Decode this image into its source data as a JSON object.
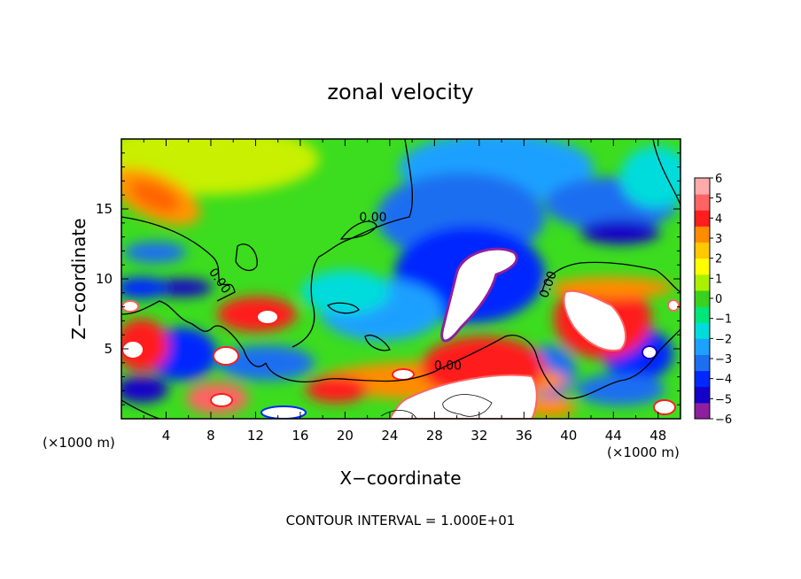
{
  "chart_data": {
    "type": "heatmap",
    "title": "zonal velocity",
    "xlabel": "X−coordinate",
    "ylabel": "Z−coordinate",
    "x_unit_left": "(×1000 m)",
    "x_unit_right": "(×1000 m)",
    "footer": "CONTOUR INTERVAL = 1.000E+01",
    "xlim": [
      0,
      50
    ],
    "ylim": [
      0,
      20
    ],
    "x_ticks": [
      4,
      8,
      12,
      16,
      20,
      24,
      28,
      32,
      36,
      40,
      44,
      48
    ],
    "y_ticks": [
      5,
      10,
      15
    ],
    "colorbar": {
      "range": [
        -6,
        6
      ],
      "labels": [
        "6",
        "5",
        "4",
        "3",
        "2",
        "1",
        "0",
        "−1",
        "−2",
        "−3",
        "−4",
        "−5",
        "−6"
      ],
      "colors": [
        "#8e1fa0",
        "#1400c8",
        "#0028ff",
        "#1e6ef0",
        "#1ea0ff",
        "#00dcdc",
        "#00e678",
        "#3ad21e",
        "#aaf000",
        "#ffff00",
        "#ffc800",
        "#ff8c00",
        "#ff1e1e",
        "#ff6464",
        "#ffaaaa"
      ]
    },
    "contour_labels": [
      {
        "text": "0.00",
        "x": 22.5,
        "y": 14.1
      },
      {
        "text": "0.00",
        "x": 8.5,
        "y": 9.7,
        "rotate": 55
      },
      {
        "text": "0.00",
        "x": 38.5,
        "y": 9.5,
        "rotate": -70
      },
      {
        "text": "0.00",
        "x": 29.2,
        "y": 3.5
      }
    ]
  }
}
